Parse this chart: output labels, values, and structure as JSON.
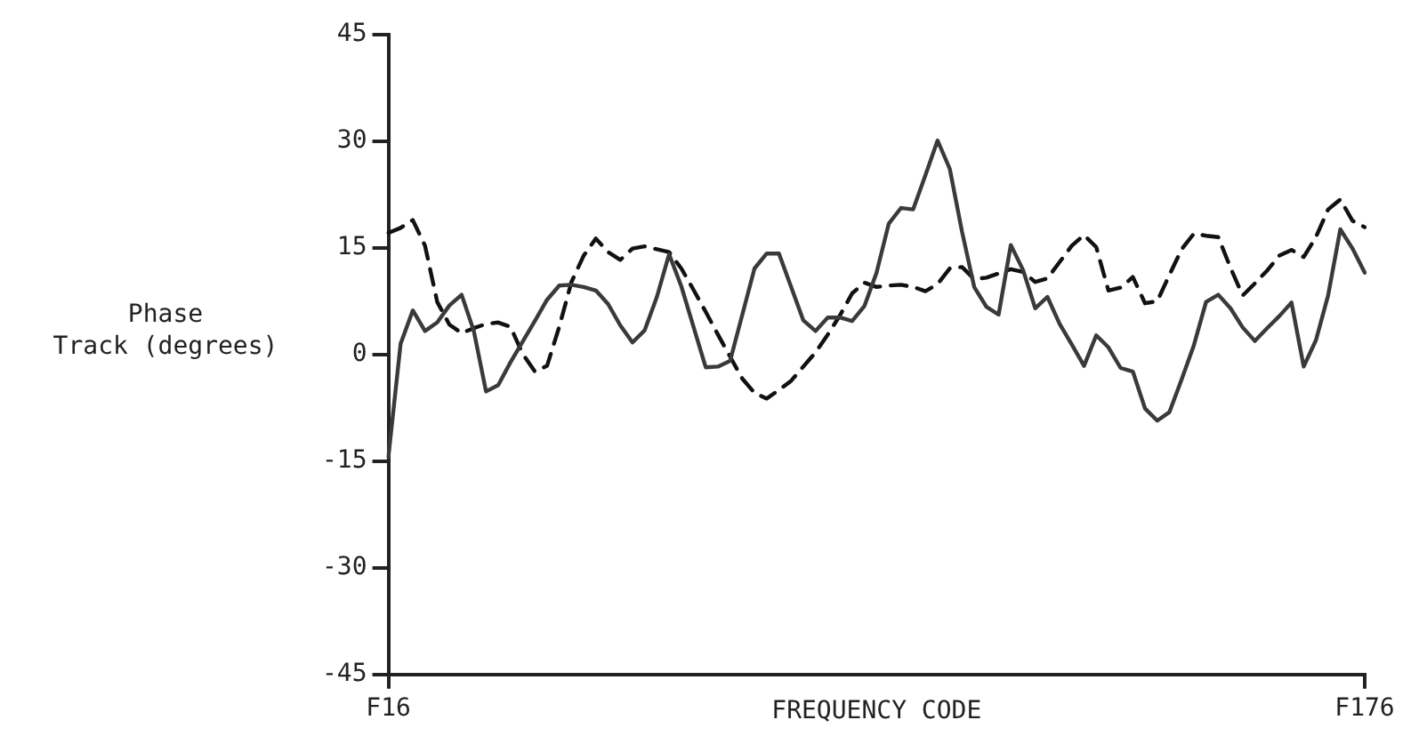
{
  "chart_data": {
    "type": "line",
    "xlabel": "FREQUENCY CODE",
    "ylabel": "Phase Track (degrees)",
    "ylim": [
      -45,
      45
    ],
    "yticks": [
      -45,
      -30,
      -15,
      0,
      15,
      30,
      45
    ],
    "grid": false,
    "legend": false,
    "marker": "none",
    "categories": [
      "F16",
      null,
      null,
      null,
      null,
      null,
      null,
      null,
      null,
      null,
      null,
      null,
      null,
      null,
      null,
      null,
      null,
      null,
      null,
      null,
      null,
      null,
      null,
      null,
      null,
      null,
      null,
      null,
      null,
      null,
      null,
      null,
      null,
      null,
      null,
      null,
      null,
      null,
      null,
      null,
      null,
      null,
      null,
      null,
      null,
      null,
      null,
      null,
      null,
      null,
      null,
      null,
      null,
      null,
      null,
      null,
      null,
      null,
      null,
      null,
      null,
      null,
      null,
      null,
      null,
      null,
      null,
      null,
      null,
      null,
      null,
      null,
      null,
      null,
      null,
      null,
      null,
      null,
      null,
      null,
      "F176"
    ],
    "series": [
      {
        "color": "#3a3a3a",
        "line_style": "solid",
        "values": [
          -14.4,
          1.5,
          6.2,
          3.3,
          4.5,
          6.9,
          8.4,
          3.3,
          -5.2,
          -4.3,
          -1.1,
          1.8,
          4.7,
          7.7,
          9.7,
          9.8,
          9.5,
          9.0,
          7.1,
          4.1,
          1.7,
          3.4,
          8.1,
          14.1,
          9.6,
          3.9,
          -1.8,
          -1.7,
          -0.9,
          5.6,
          12.1,
          14.2,
          14.2,
          9.5,
          4.8,
          3.3,
          5.2,
          5.2,
          4.7,
          6.8,
          11.5,
          18.4,
          20.6,
          20.4,
          25.2,
          30.1,
          26.1,
          17.3,
          9.5,
          6.7,
          5.6,
          15.4,
          11.9,
          6.5,
          8.1,
          4.3,
          1.4,
          -1.6,
          2.7,
          1.0,
          -1.9,
          -2.4,
          -7.6,
          -9.3,
          -8.1,
          -3.5,
          1.3,
          7.4,
          8.4,
          6.5,
          3.8,
          1.9,
          3.7,
          5.4,
          7.3,
          -1.7,
          2.0,
          8.3,
          17.6,
          14.9,
          11.5
        ]
      },
      {
        "color": "#111111",
        "line_style": "dashed",
        "values": [
          17.1,
          17.8,
          18.9,
          15.3,
          7.4,
          4.2,
          3.0,
          3.7,
          4.3,
          4.5,
          3.9,
          0.1,
          -2.4,
          -1.6,
          3.9,
          10.2,
          13.9,
          16.3,
          14.4,
          13.3,
          14.9,
          15.2,
          14.8,
          14.4,
          12.1,
          9.1,
          6.0,
          2.8,
          -0.3,
          -3.4,
          -5.4,
          -6.2,
          -5.0,
          -3.7,
          -1.7,
          0.3,
          2.8,
          5.5,
          8.6,
          10.1,
          9.5,
          9.7,
          9.8,
          9.5,
          8.9,
          9.9,
          12.1,
          12.3,
          10.6,
          10.8,
          11.4,
          12.0,
          11.6,
          10.2,
          10.7,
          13.0,
          15.3,
          16.8,
          15.1,
          9.0,
          9.4,
          10.9,
          7.2,
          7.5,
          11.2,
          14.8,
          17.0,
          16.7,
          16.5,
          12.2,
          8.3,
          10.0,
          11.8,
          13.9,
          14.7,
          13.7,
          16.5,
          20.4,
          21.8,
          18.8,
          17.9
        ]
      }
    ]
  }
}
